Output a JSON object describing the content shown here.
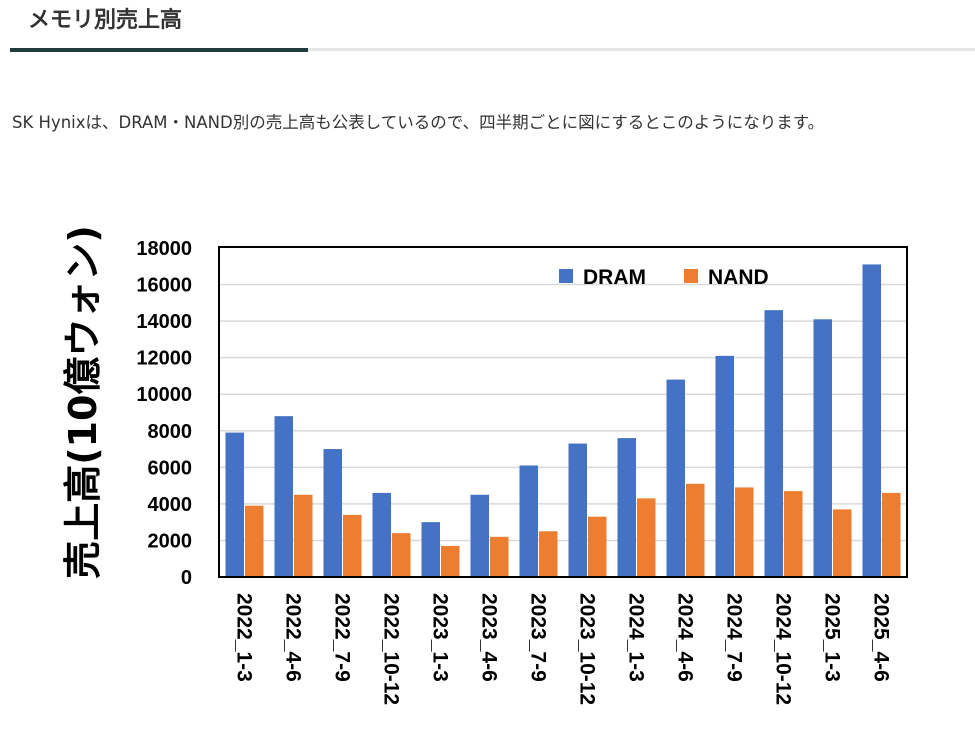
{
  "section": {
    "title": "メモリ別売上高"
  },
  "intro_text": "SK Hynixは、DRAM・NAND別の売上高も公表しているので、四半期ごとに図にするとこのようになります。",
  "chart_data": {
    "type": "bar",
    "title": "",
    "xlabel": "",
    "ylabel": "売上高(10億ウォン)",
    "ylim": [
      0,
      18000
    ],
    "yticks": [
      0,
      2000,
      4000,
      6000,
      8000,
      10000,
      12000,
      14000,
      16000,
      18000
    ],
    "grid": true,
    "legend_position": "top-right",
    "categories": [
      "2022_1-3",
      "2022_4-6",
      "2022_7-9",
      "2022_10-12",
      "2023_1-3",
      "2023_4-6",
      "2023_7-9",
      "2023_10-12",
      "2024_1-3",
      "2024_4-6",
      "2024_7-9",
      "2024_10-12",
      "2025_1-3",
      "2025_4-6"
    ],
    "series": [
      {
        "name": "DRAM",
        "color": "#4472c4",
        "values": [
          7900,
          8800,
          7000,
          4600,
          3000,
          4500,
          6100,
          7300,
          7600,
          10800,
          12100,
          14600,
          14100,
          17100
        ]
      },
      {
        "name": "NAND",
        "color": "#ed7d31",
        "values": [
          3900,
          4500,
          3400,
          2400,
          1700,
          2200,
          2500,
          3300,
          4300,
          5100,
          4900,
          4700,
          3700,
          4600
        ]
      }
    ]
  }
}
